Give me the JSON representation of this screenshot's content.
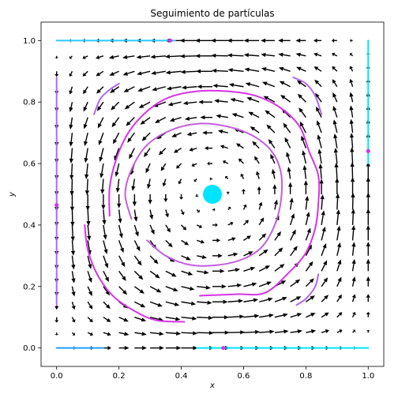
{
  "chart_data": {
    "type": "quiver",
    "title": "Seguimiento de partículas",
    "xlabel": "x",
    "ylabel": "y",
    "xlim": [
      -0.05,
      1.05
    ],
    "ylim": [
      -0.06,
      1.06
    ],
    "xticks": [
      "0.0",
      "0.2",
      "0.4",
      "0.6",
      "0.8",
      "1.0"
    ],
    "yticks": [
      "0.0",
      "0.2",
      "0.4",
      "0.6",
      "0.8",
      "1.0"
    ],
    "field": {
      "formula": "u = sin(pi x) cos(pi y) ; v = -cos(pi x) sin(pi y)",
      "grid": 21,
      "range": [
        0,
        1
      ],
      "arrow_color": "#000000"
    },
    "particle": {
      "center": [
        0.5,
        0.5
      ],
      "color": "#00e5ff"
    },
    "trajectories": [
      {
        "color": "#d633e8",
        "points": [
          [
            0.09,
            0.4
          ],
          [
            0.1,
            0.32
          ],
          [
            0.13,
            0.24
          ],
          [
            0.18,
            0.17
          ],
          [
            0.25,
            0.12
          ],
          [
            0.32,
            0.09
          ],
          [
            0.41,
            0.085
          ]
        ]
      },
      {
        "color": "#d633e8",
        "points": [
          [
            0.17,
            0.43
          ],
          [
            0.17,
            0.52
          ],
          [
            0.19,
            0.61
          ],
          [
            0.23,
            0.7
          ],
          [
            0.29,
            0.77
          ],
          [
            0.36,
            0.815
          ],
          [
            0.45,
            0.835
          ],
          [
            0.55,
            0.835
          ],
          [
            0.64,
            0.82
          ],
          [
            0.72,
            0.78
          ],
          [
            0.78,
            0.72
          ],
          [
            0.81,
            0.64
          ],
          [
            0.84,
            0.56
          ],
          [
            0.84,
            0.47
          ],
          [
            0.83,
            0.39
          ],
          [
            0.8,
            0.31
          ],
          [
            0.75,
            0.25
          ],
          [
            0.67,
            0.18
          ],
          [
            0.58,
            0.175
          ],
          [
            0.46,
            0.17
          ]
        ]
      },
      {
        "color": "#c45ee0",
        "points": [
          [
            0.24,
            0.42
          ],
          [
            0.22,
            0.5
          ],
          [
            0.24,
            0.58
          ],
          [
            0.29,
            0.66
          ],
          [
            0.37,
            0.71
          ],
          [
            0.46,
            0.73
          ],
          [
            0.55,
            0.72
          ],
          [
            0.63,
            0.69
          ],
          [
            0.69,
            0.64
          ],
          [
            0.72,
            0.57
          ],
          [
            0.72,
            0.48
          ],
          [
            0.7,
            0.4
          ],
          [
            0.66,
            0.33
          ],
          [
            0.6,
            0.29
          ],
          [
            0.52,
            0.27
          ],
          [
            0.43,
            0.27
          ],
          [
            0.35,
            0.3
          ],
          [
            0.29,
            0.35
          ]
        ]
      },
      {
        "color": "#b066f0",
        "points": [
          [
            0.77,
            0.14
          ],
          [
            0.8,
            0.16
          ],
          [
            0.83,
            0.2
          ],
          [
            0.84,
            0.24
          ]
        ]
      },
      {
        "color": "#b066f0",
        "points": [
          [
            0.12,
            0.76
          ],
          [
            0.14,
            0.81
          ],
          [
            0.17,
            0.84
          ],
          [
            0.2,
            0.86
          ]
        ]
      },
      {
        "color": "#b066f0",
        "points": [
          [
            0.76,
            0.88
          ],
          [
            0.8,
            0.86
          ],
          [
            0.83,
            0.82
          ],
          [
            0.85,
            0.76
          ]
        ]
      },
      {
        "color": "#b366ff",
        "points": [
          [
            0.0,
            0.14
          ],
          [
            0.0,
            0.88
          ]
        ]
      },
      {
        "color": "#2ec8ff",
        "points": [
          [
            0.0,
            1.0
          ],
          [
            0.38,
            1.0
          ]
        ]
      },
      {
        "color": "#00e5ff",
        "points": [
          [
            1.0,
            0.6
          ],
          [
            1.0,
            1.0
          ]
        ]
      },
      {
        "color": "#00e5ff",
        "points": [
          [
            0.45,
            0.0
          ],
          [
            1.0,
            0.0
          ]
        ]
      },
      {
        "color": "#1ea0ff",
        "points": [
          [
            0.0,
            0.0
          ],
          [
            0.15,
            0.0
          ]
        ]
      }
    ],
    "markers": [
      {
        "x": 0.0,
        "y": 0.465,
        "color": "#d633e8"
      },
      {
        "x": 0.365,
        "y": 1.0,
        "color": "#d633e8"
      },
      {
        "x": 1.0,
        "y": 0.64,
        "color": "#d633e8"
      },
      {
        "x": 0.535,
        "y": 0.0,
        "color": "#d633e8"
      }
    ]
  }
}
